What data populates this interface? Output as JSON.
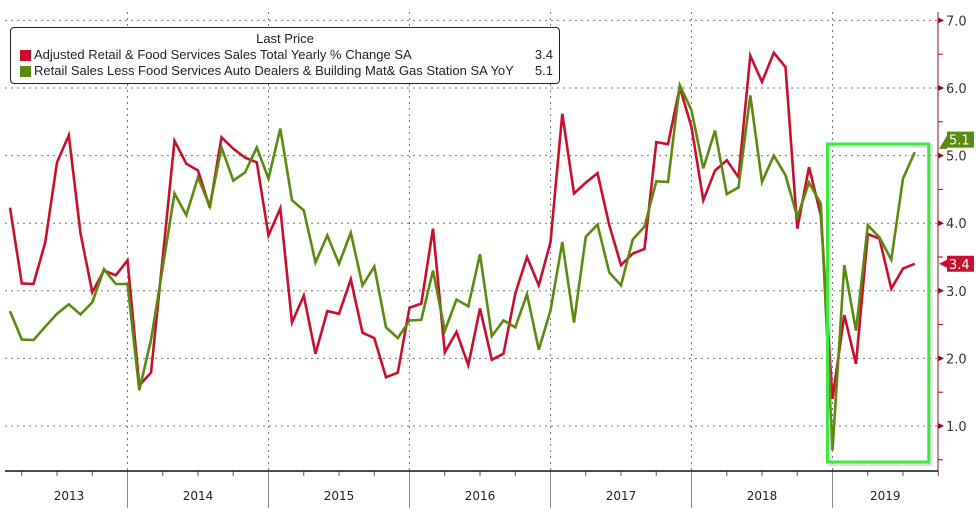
{
  "chart_data": {
    "type": "line",
    "title": "",
    "x_start": "2013-02",
    "frequency": "monthly",
    "x_tick_labels": [
      "2013",
      "2014",
      "2015",
      "2016",
      "2017",
      "2018",
      "2019"
    ],
    "y_tick_labels": [
      "1.0",
      "2.0",
      "3.0",
      "4.0",
      "5.0",
      "6.0",
      "7.0"
    ],
    "ylim": [
      0.4,
      7.0
    ],
    "y_axis_side": "right",
    "grid": true,
    "legend": {
      "header": "Last Price",
      "placement": "top-left"
    },
    "series": [
      {
        "name": "Adjusted Retail & Food Services Sales Total Yearly % Change SA",
        "last_value": "3.4",
        "color": "#c8102e",
        "values": [
          4.23,
          3.11,
          3.1,
          3.72,
          4.9,
          5.3,
          3.85,
          2.98,
          3.3,
          3.23,
          3.45,
          1.6,
          1.79,
          3.5,
          5.22,
          4.88,
          4.78,
          4.23,
          5.27,
          5.1,
          4.97,
          4.9,
          3.82,
          4.22,
          2.53,
          2.93,
          2.07,
          2.7,
          2.66,
          3.17,
          2.38,
          2.3,
          1.72,
          1.79,
          2.75,
          2.81,
          3.92,
          2.09,
          2.39,
          1.9,
          2.74,
          1.98,
          2.07,
          2.96,
          3.5,
          3.08,
          3.72,
          5.62,
          4.44,
          4.6,
          4.74,
          3.97,
          3.38,
          3.55,
          3.62,
          5.2,
          5.17,
          6.01,
          5.42,
          4.34,
          4.78,
          4.93,
          4.68,
          6.48,
          6.09,
          6.52,
          6.31,
          3.92,
          4.83,
          4.12,
          1.4,
          2.64,
          1.92,
          3.84,
          3.77,
          3.03,
          3.33,
          3.4
        ]
      },
      {
        "name": "Retail Sales Less Food Services Auto Dealers & Building Mat& Gas Station SA YoY",
        "last_value": "5.1",
        "color": "#5a8a0f",
        "values": [
          2.7,
          2.28,
          2.27,
          2.47,
          2.66,
          2.8,
          2.65,
          2.83,
          3.32,
          3.1,
          3.1,
          1.53,
          2.27,
          3.35,
          4.44,
          4.12,
          4.68,
          4.25,
          5.12,
          4.63,
          4.75,
          5.12,
          4.66,
          5.4,
          4.34,
          4.19,
          3.42,
          3.82,
          3.4,
          3.86,
          3.08,
          3.36,
          2.46,
          2.3,
          2.56,
          2.57,
          3.3,
          2.41,
          2.87,
          2.77,
          3.54,
          2.33,
          2.56,
          2.46,
          2.95,
          2.13,
          2.71,
          3.72,
          2.53,
          3.8,
          3.98,
          3.27,
          3.08,
          3.76,
          3.95,
          4.62,
          4.61,
          6.04,
          5.67,
          4.81,
          5.37,
          4.43,
          4.53,
          5.89,
          4.61,
          5.0,
          4.71,
          4.09,
          4.6,
          4.29,
          0.64,
          3.38,
          2.41,
          3.97,
          3.79,
          3.46,
          4.66,
          5.05
        ]
      }
    ],
    "highlight": {
      "color": "#3ee83e",
      "from_index": 70,
      "to_index": 77
    }
  }
}
